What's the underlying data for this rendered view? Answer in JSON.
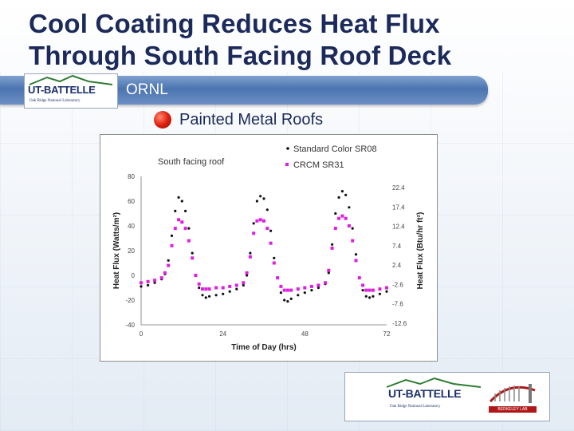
{
  "slide": {
    "title_line1": "Cool Coating Reduces Heat Flux",
    "title_line2": "Through South Facing Roof Deck",
    "banner_text": "ORNL",
    "bullet": "Painted Metal Roofs",
    "logo_text": "UT-BATTELLE",
    "logo_subtext": "Oak Ridge National Laboratory",
    "corner_logo_text": "UT-BATTELLE",
    "corner_logo_subtext": "Oak Ridge National Laboratory",
    "corner_lab_text": "BERKELEY LAB",
    "colors": {
      "title": "#1b2a5a",
      "banner": "#4b74b0",
      "bullet": "#e02010"
    }
  },
  "chart_data": {
    "type": "scatter",
    "annotation": "South facing roof",
    "xlabel": "Time of Day (hrs)",
    "ylabel_left": "Heat Flux (Watts/m²)",
    "ylabel_right": "Heat Flux (Btu/hr ft²)",
    "xlim": [
      0,
      72
    ],
    "ylim": [
      -40,
      80
    ],
    "x_ticks": [
      "0",
      "24",
      "48",
      "72"
    ],
    "y_ticks_left": [
      "80",
      "60",
      "40",
      "20",
      "0",
      "-20",
      "-40"
    ],
    "y_ticks_right": [
      "22.4",
      "17.4",
      "12.4",
      "7.4",
      "2.4",
      "-2.6",
      "-7.6",
      "-12.6"
    ],
    "grid": false,
    "legend_position": "top-right",
    "series": [
      {
        "name": "Standard Color SR08",
        "color": "#111111",
        "points": [
          [
            0,
            -9
          ],
          [
            2,
            -8
          ],
          [
            4,
            -6
          ],
          [
            6,
            -3
          ],
          [
            7,
            1
          ],
          [
            8,
            12
          ],
          [
            9,
            32
          ],
          [
            10,
            52
          ],
          [
            11,
            63
          ],
          [
            12,
            60
          ],
          [
            13,
            52
          ],
          [
            14,
            38
          ],
          [
            15,
            18
          ],
          [
            16,
            0
          ],
          [
            17,
            -10
          ],
          [
            18,
            -16
          ],
          [
            19,
            -18
          ],
          [
            20,
            -17
          ],
          [
            22,
            -16
          ],
          [
            24,
            -15
          ],
          [
            26,
            -13
          ],
          [
            28,
            -11
          ],
          [
            30,
            -8
          ],
          [
            31,
            0
          ],
          [
            32,
            18
          ],
          [
            33,
            42
          ],
          [
            34,
            60
          ],
          [
            35,
            64
          ],
          [
            36,
            62
          ],
          [
            37,
            53
          ],
          [
            38,
            36
          ],
          [
            39,
            14
          ],
          [
            40,
            -2
          ],
          [
            41,
            -14
          ],
          [
            42,
            -20
          ],
          [
            43,
            -21
          ],
          [
            44,
            -19
          ],
          [
            46,
            -16
          ],
          [
            48,
            -14
          ],
          [
            50,
            -12
          ],
          [
            52,
            -10
          ],
          [
            54,
            -7
          ],
          [
            55,
            2
          ],
          [
            56,
            25
          ],
          [
            57,
            50
          ],
          [
            58,
            63
          ],
          [
            59,
            68
          ],
          [
            60,
            65
          ],
          [
            61,
            55
          ],
          [
            62,
            38
          ],
          [
            63,
            17
          ],
          [
            64,
            -2
          ],
          [
            65,
            -12
          ],
          [
            66,
            -17
          ],
          [
            67,
            -18
          ],
          [
            68,
            -17
          ],
          [
            70,
            -15
          ],
          [
            72,
            -13
          ]
        ]
      },
      {
        "name": "CRCM SR31",
        "color": "#e01ee0",
        "points": [
          [
            0,
            -6
          ],
          [
            2,
            -5
          ],
          [
            4,
            -4
          ],
          [
            6,
            -2
          ],
          [
            7,
            2
          ],
          [
            8,
            8
          ],
          [
            9,
            24
          ],
          [
            10,
            38
          ],
          [
            11,
            45
          ],
          [
            12,
            43
          ],
          [
            13,
            38
          ],
          [
            14,
            28
          ],
          [
            15,
            14
          ],
          [
            16,
            0
          ],
          [
            17,
            -7
          ],
          [
            18,
            -11
          ],
          [
            19,
            -11
          ],
          [
            20,
            -11
          ],
          [
            22,
            -10
          ],
          [
            24,
            -10
          ],
          [
            26,
            -9
          ],
          [
            28,
            -8
          ],
          [
            30,
            -6
          ],
          [
            31,
            2
          ],
          [
            32,
            15
          ],
          [
            33,
            34
          ],
          [
            34,
            44
          ],
          [
            35,
            45
          ],
          [
            36,
            44
          ],
          [
            37,
            38
          ],
          [
            38,
            26
          ],
          [
            39,
            10
          ],
          [
            40,
            -2
          ],
          [
            41,
            -9
          ],
          [
            42,
            -12
          ],
          [
            43,
            -12
          ],
          [
            44,
            -12
          ],
          [
            46,
            -11
          ],
          [
            48,
            -10
          ],
          [
            50,
            -9
          ],
          [
            52,
            -8
          ],
          [
            54,
            -6
          ],
          [
            55,
            4
          ],
          [
            56,
            22
          ],
          [
            57,
            38
          ],
          [
            58,
            46
          ],
          [
            59,
            48
          ],
          [
            60,
            46
          ],
          [
            61,
            40
          ],
          [
            62,
            28
          ],
          [
            63,
            12
          ],
          [
            64,
            -2
          ],
          [
            65,
            -8
          ],
          [
            66,
            -12
          ],
          [
            67,
            -12
          ],
          [
            68,
            -12
          ],
          [
            70,
            -11
          ],
          [
            72,
            -10
          ]
        ]
      }
    ]
  }
}
